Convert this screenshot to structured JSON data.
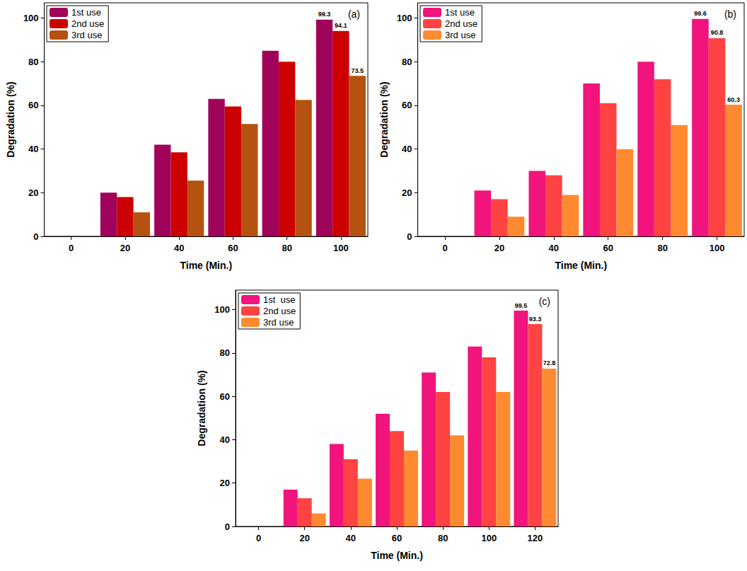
{
  "chart_data": [
    {
      "type": "bar",
      "title": "(a)",
      "x_label": "Time (Min.)",
      "y_label": "Degradation (%)",
      "categories": [
        "0",
        "20",
        "40",
        "60",
        "80",
        "100"
      ],
      "series": [
        {
          "name": "1st use",
          "color": "#a0045a",
          "values": [
            0,
            20,
            42,
            63,
            85,
            99.3
          ],
          "value_labels": [
            null,
            null,
            null,
            null,
            null,
            "99.3"
          ]
        },
        {
          "name": "2nd use",
          "color": "#cc0000",
          "values": [
            0,
            18,
            38.5,
            59.5,
            80,
            94.1
          ],
          "value_labels": [
            null,
            null,
            null,
            null,
            null,
            "94.1"
          ]
        },
        {
          "name": "3rd use",
          "color": "#b5520f",
          "values": [
            0,
            11,
            25.5,
            51.5,
            62.5,
            73.5
          ],
          "value_labels": [
            null,
            null,
            null,
            null,
            null,
            "73.5"
          ]
        }
      ],
      "ylim": [
        0,
        107
      ],
      "yticks": [
        0,
        20,
        40,
        60,
        80,
        100
      ],
      "grid": false,
      "legend": "upper left",
      "data_labels": true
    },
    {
      "type": "bar",
      "title": "(b)",
      "x_label": "Time (Min.)",
      "y_label": "Degradation (%)",
      "categories": [
        "0",
        "20",
        "40",
        "60",
        "80",
        "100"
      ],
      "series": [
        {
          "name": "1st use",
          "color": "#f0147c",
          "values": [
            0,
            21,
            30,
            70,
            80,
            99.6
          ],
          "value_labels": [
            null,
            null,
            null,
            null,
            null,
            "99.6"
          ]
        },
        {
          "name": "2nd use",
          "color": "#ff4242",
          "values": [
            0,
            17,
            28,
            61,
            72,
            90.8
          ],
          "value_labels": [
            null,
            null,
            null,
            null,
            null,
            "90.8"
          ]
        },
        {
          "name": "3rd use",
          "color": "#ff8a30",
          "values": [
            0,
            9,
            19,
            40,
            51,
            60.3
          ],
          "value_labels": [
            null,
            null,
            null,
            null,
            null,
            "60.3"
          ]
        }
      ],
      "ylim": [
        0,
        107
      ],
      "yticks": [
        0,
        20,
        40,
        60,
        80,
        100
      ],
      "grid": false,
      "legend": "upper left",
      "data_labels": true
    },
    {
      "type": "bar",
      "title": "(c)",
      "x_label": "Time (Min.)",
      "y_label": "Degradation (%)",
      "categories": [
        "0",
        "20",
        "40",
        "60",
        "80",
        "100",
        "120"
      ],
      "series": [
        {
          "name": "1st  use",
          "color": "#f0147c",
          "values": [
            0,
            17,
            38,
            52,
            71,
            83,
            99.5
          ],
          "value_labels": [
            null,
            null,
            null,
            null,
            null,
            null,
            "99.5"
          ]
        },
        {
          "name": "2nd use",
          "color": "#ff4242",
          "values": [
            0,
            13,
            31,
            44,
            62,
            78,
            93.3
          ],
          "value_labels": [
            null,
            null,
            null,
            null,
            null,
            null,
            "93.3"
          ]
        },
        {
          "name": "3rd use",
          "color": "#ff8a30",
          "values": [
            0,
            6,
            22,
            35,
            42,
            62,
            72.8
          ],
          "value_labels": [
            null,
            null,
            null,
            null,
            null,
            null,
            "72.8"
          ]
        }
      ],
      "ylim": [
        0,
        109
      ],
      "yticks": [
        0,
        20,
        40,
        60,
        80,
        100
      ],
      "grid": false,
      "legend": "upper left",
      "data_labels": true
    }
  ]
}
